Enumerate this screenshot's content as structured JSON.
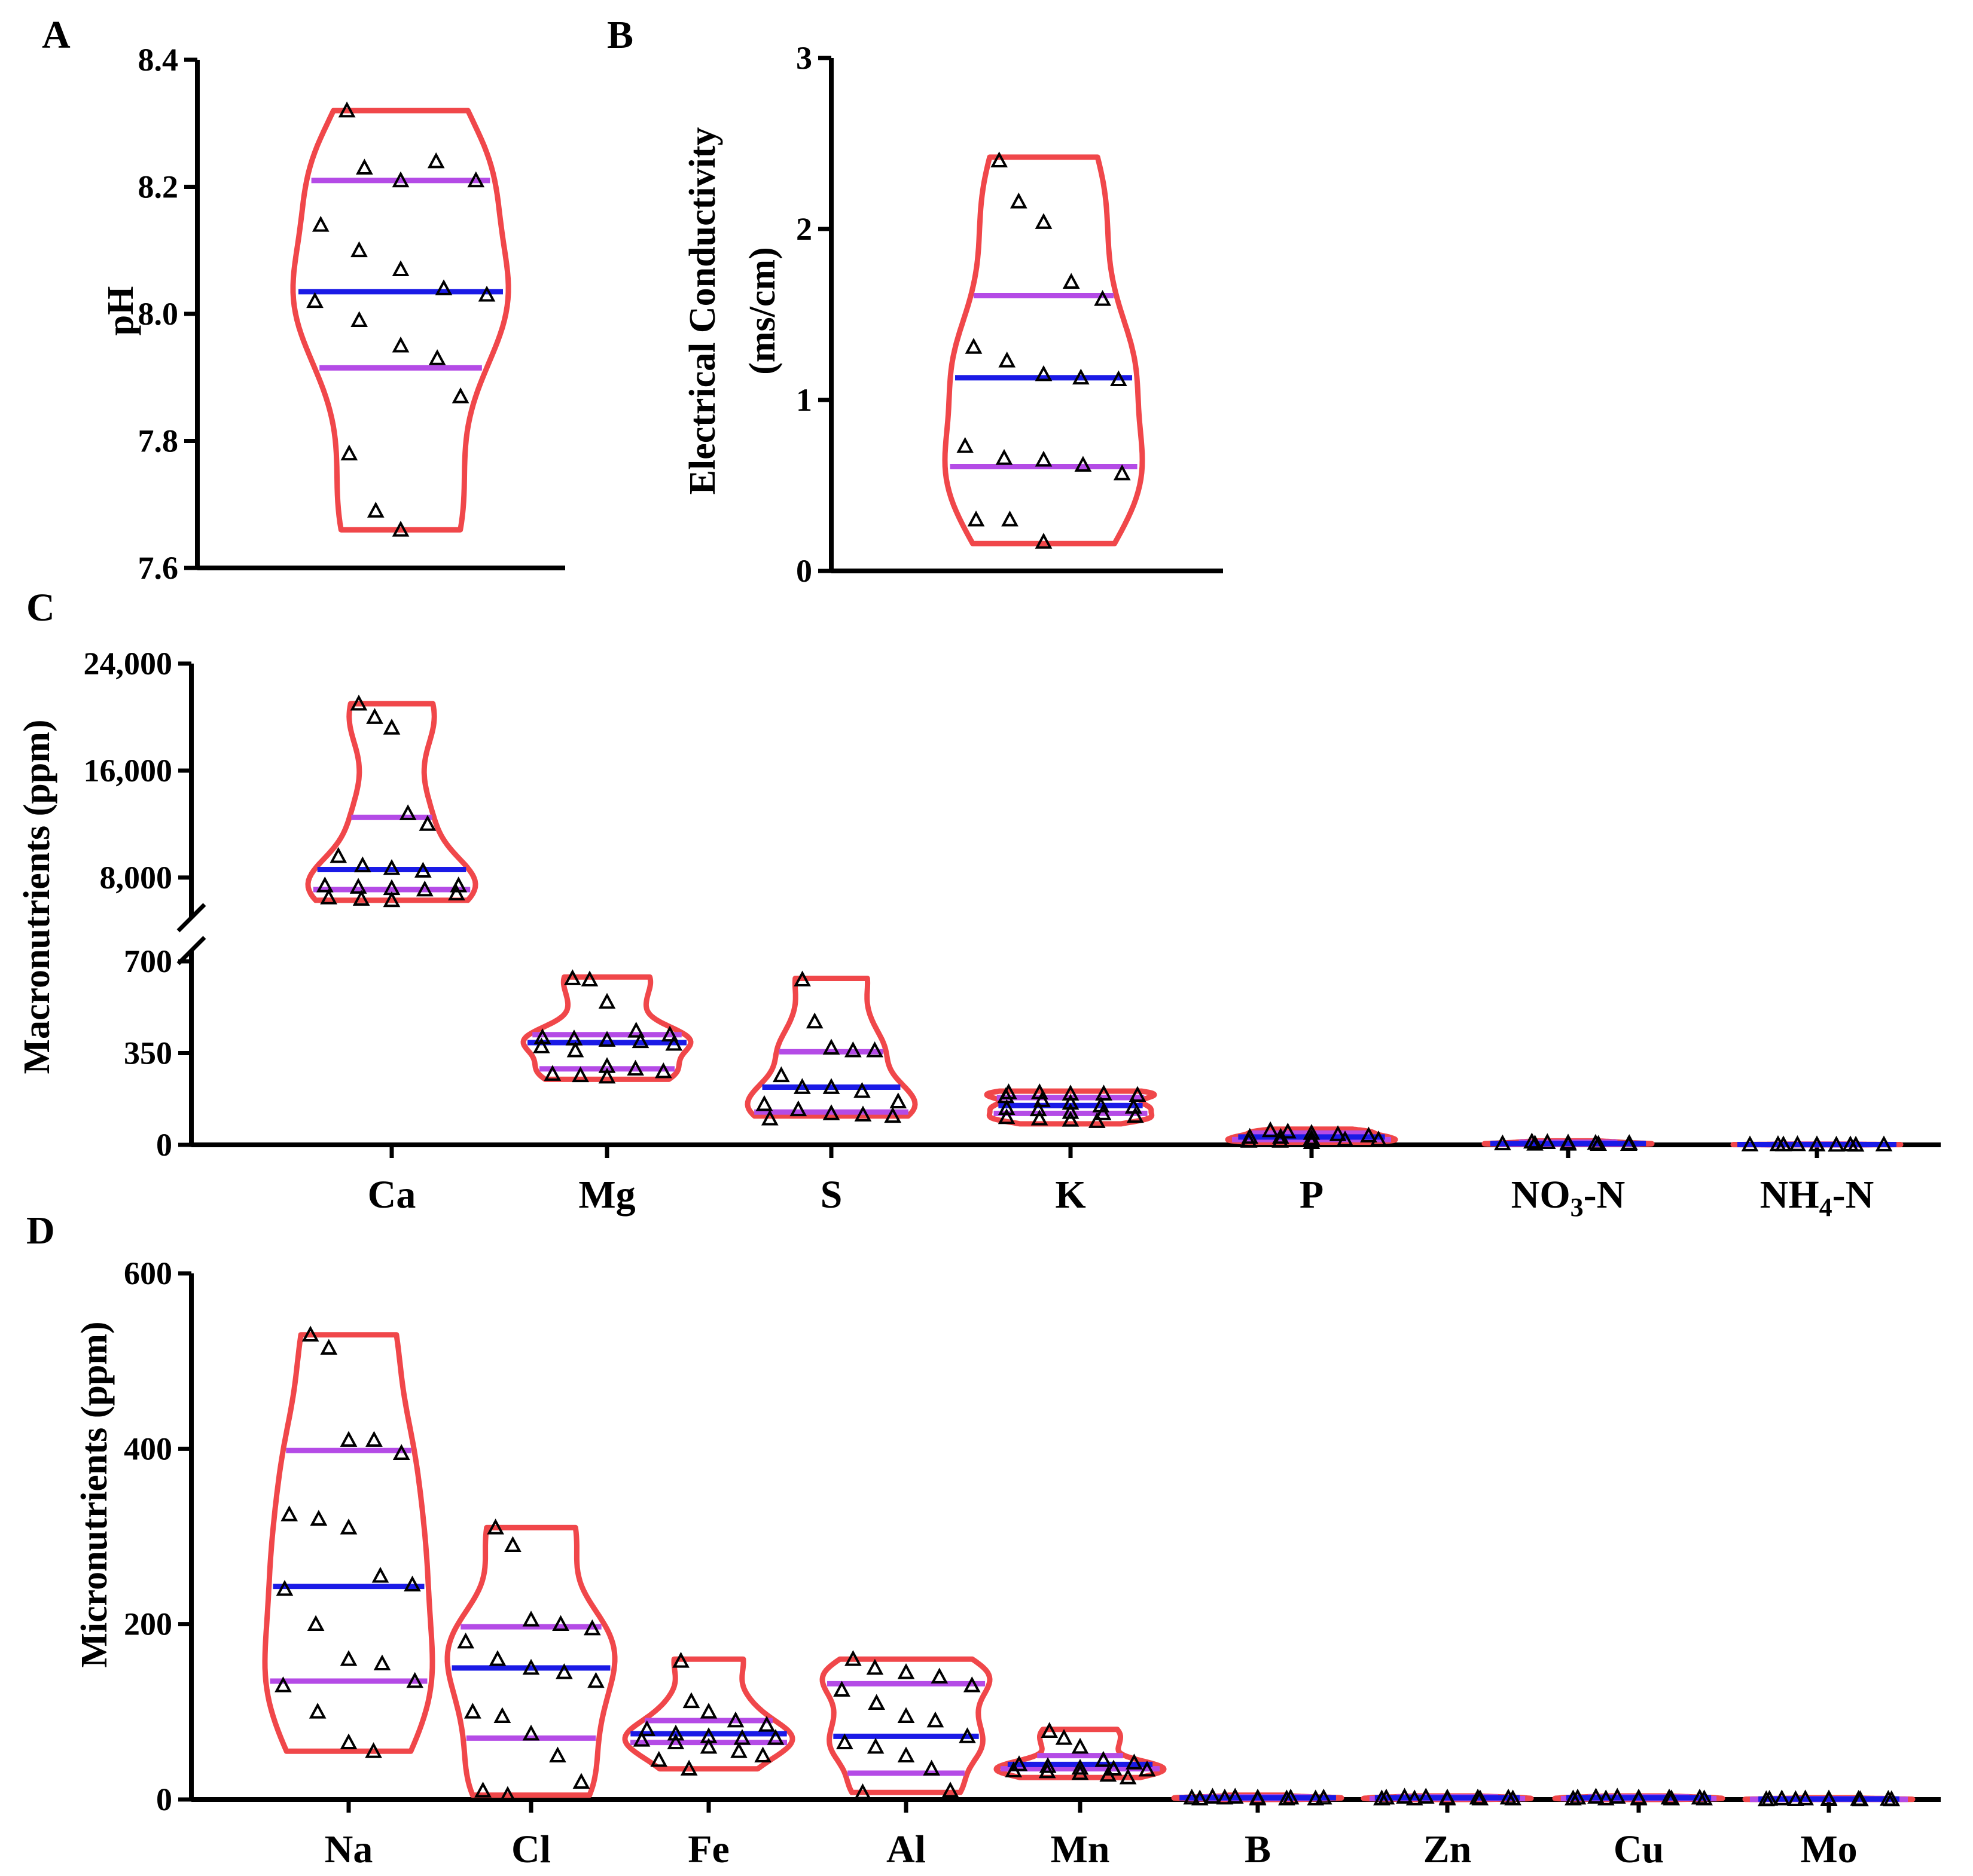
{
  "figure": {
    "colors": {
      "violin": "#f0474a",
      "median": "#1a1ae6",
      "quartile": "#b44be6",
      "marker": "#000000",
      "axis": "#000000"
    }
  },
  "chart_data": [
    {
      "panel": "A",
      "type": "violin",
      "ylabel": "pH",
      "ylim": [
        7.6,
        8.4
      ],
      "yticks": [
        7.6,
        7.8,
        8.0,
        8.2,
        8.4
      ],
      "ytick_labels": [
        "7.6",
        "7.8",
        "8.0",
        "8.2",
        "8.4"
      ],
      "groups": [
        {
          "name": "",
          "min": 7.66,
          "max": 8.32,
          "median": 8.035,
          "q1": 7.915,
          "q3": 8.21,
          "points": [
            8.32,
            8.23,
            8.21,
            8.24,
            8.21,
            8.14,
            8.1,
            8.07,
            8.04,
            8.03,
            8.02,
            7.99,
            7.95,
            7.93,
            7.87,
            7.78,
            7.69,
            7.66
          ]
        }
      ]
    },
    {
      "panel": "B",
      "type": "violin",
      "ylabel": "Electrical Conductivity",
      "ylabel2": "(ms/cm)",
      "ylim": [
        0,
        3
      ],
      "yticks": [
        0,
        1,
        2,
        3
      ],
      "ytick_labels": [
        "0",
        "1",
        "2",
        "3"
      ],
      "groups": [
        {
          "name": "",
          "min": 0.16,
          "max": 2.42,
          "median": 1.13,
          "q1": 0.61,
          "q3": 1.61,
          "points": [
            2.4,
            2.16,
            2.04,
            1.69,
            1.59,
            1.31,
            1.23,
            1.15,
            1.13,
            1.12,
            0.73,
            0.66,
            0.65,
            0.62,
            0.57,
            0.3,
            0.3,
            0.17
          ]
        }
      ]
    },
    {
      "panel": "C",
      "type": "violin",
      "ylabel": "Macronutrients (ppm)",
      "broken_axis": {
        "lower": [
          0,
          700
        ],
        "upper": [
          5000,
          24000
        ]
      },
      "yticks": [
        0,
        350,
        700,
        8000,
        16000,
        24000
      ],
      "ytick_labels": [
        "0",
        "350",
        "700",
        "8,000",
        "16,000",
        "24,000"
      ],
      "categories": [
        "Ca",
        "Mg",
        "S",
        "K",
        "P",
        "NO3-N",
        "NH4-N"
      ],
      "groups": [
        {
          "name": "Ca",
          "min": 6300,
          "max": 21000,
          "median": 8600,
          "q1": 7100,
          "q3": 12500,
          "points": [
            21000,
            20000,
            19200,
            12800,
            12000,
            9600,
            8900,
            8700,
            8500,
            7400,
            7400,
            7300,
            7200,
            7100,
            6800,
            6500,
            6400,
            6300
          ]
        },
        {
          "name": "Mg",
          "min": 250,
          "max": 640,
          "median": 390,
          "q1": 290,
          "q3": 420,
          "points": [
            635,
            630,
            545,
            435,
            420,
            410,
            405,
            400,
            395,
            385,
            375,
            360,
            300,
            290,
            280,
            270,
            265,
            260
          ]
        },
        {
          "name": "S",
          "min": 110,
          "max": 635,
          "median": 220,
          "q1": 125,
          "q3": 355,
          "points": [
            630,
            470,
            370,
            360,
            360,
            265,
            220,
            220,
            205,
            165,
            155,
            135,
            120,
            115,
            110,
            100
          ]
        },
        {
          "name": "K",
          "min": 80,
          "max": 205,
          "median": 150,
          "q1": 120,
          "q3": 180,
          "points": [
            200,
            200,
            195,
            195,
            190,
            185,
            170,
            160,
            150,
            145,
            140,
            135,
            125,
            120,
            110,
            105,
            100,
            95,
            90
          ]
        },
        {
          "name": "P",
          "min": 10,
          "max": 60,
          "median": 30,
          "q1": 20,
          "q3": 45,
          "points": [
            55,
            50,
            45,
            40,
            35,
            30,
            30,
            25,
            20,
            20,
            15,
            15,
            10
          ]
        },
        {
          "name": "NO3-N",
          "min": 2,
          "max": 15,
          "median": 5,
          "q1": 3,
          "q3": 10,
          "points": [
            12,
            10,
            8,
            7,
            6,
            5,
            4,
            4,
            3,
            3
          ]
        },
        {
          "name": "NH4-N",
          "min": 0,
          "max": 3,
          "median": 1,
          "q1": 0.5,
          "q3": 2,
          "points": [
            2,
            2,
            1,
            1,
            1,
            1,
            1,
            1,
            0,
            0
          ]
        }
      ],
      "category_labels": {
        "Ca": "Ca",
        "Mg": "Mg",
        "S": "S",
        "K": "K",
        "P": "P",
        "NO3_main": "NO",
        "NO3_sub": "3",
        "NO3_tail": "-N",
        "NH4_main": "NH",
        "NH4_sub": "4",
        "NH4_tail": "-N"
      }
    },
    {
      "panel": "D",
      "type": "violin",
      "ylabel": "Micronutrients (ppm)",
      "ylim": [
        0,
        600
      ],
      "yticks": [
        0,
        200,
        400,
        600
      ],
      "ytick_labels": [
        "0",
        "200",
        "400",
        "600"
      ],
      "categories": [
        "Na",
        "Cl",
        "Fe",
        "Al",
        "Mn",
        "B",
        "Zn",
        "Cu",
        "Mo"
      ],
      "groups": [
        {
          "name": "Na",
          "min": 55,
          "max": 530,
          "median": 243,
          "q1": 135,
          "q3": 398,
          "points": [
            530,
            515,
            410,
            410,
            395,
            325,
            320,
            310,
            255,
            245,
            240,
            200,
            160,
            155,
            135,
            130,
            100,
            65,
            55
          ]
        },
        {
          "name": "Cl",
          "min": 5,
          "max": 310,
          "median": 150,
          "q1": 70,
          "q3": 197,
          "points": [
            310,
            290,
            205,
            200,
            195,
            180,
            160,
            150,
            145,
            135,
            100,
            95,
            75,
            50,
            20,
            10,
            5
          ]
        },
        {
          "name": "Fe",
          "min": 35,
          "max": 160,
          "median": 75,
          "q1": 65,
          "q3": 90,
          "points": [
            158,
            112,
            100,
            90,
            85,
            80,
            75,
            72,
            70,
            70,
            68,
            65,
            60,
            55,
            50,
            45,
            35
          ]
        },
        {
          "name": "Al",
          "min": 8,
          "max": 160,
          "median": 72,
          "q1": 30,
          "q3": 132,
          "points": [
            160,
            150,
            145,
            140,
            130,
            125,
            110,
            95,
            90,
            72,
            65,
            60,
            50,
            35,
            10,
            8
          ]
        },
        {
          "name": "Mn",
          "min": 25,
          "max": 80,
          "median": 40,
          "q1": 35,
          "q3": 50,
          "points": [
            78,
            70,
            60,
            45,
            42,
            40,
            38,
            36,
            35,
            34,
            33,
            32,
            30,
            28,
            25
          ]
        },
        {
          "name": "B",
          "min": 0,
          "max": 5,
          "median": 2,
          "q1": 1,
          "q3": 3,
          "points": [
            3,
            3,
            2,
            2,
            2,
            2,
            2,
            1,
            1,
            1,
            1
          ]
        },
        {
          "name": "Zn",
          "min": 0,
          "max": 4,
          "median": 2,
          "q1": 1,
          "q3": 3,
          "points": [
            3,
            3,
            2,
            2,
            2,
            2,
            1,
            1,
            1,
            1,
            1
          ]
        },
        {
          "name": "Cu",
          "min": 0,
          "max": 4,
          "median": 2,
          "q1": 1,
          "q3": 3,
          "points": [
            3,
            3,
            2,
            2,
            2,
            2,
            1,
            1,
            1,
            1,
            1
          ]
        },
        {
          "name": "Mo",
          "min": 0,
          "max": 2,
          "median": 0.5,
          "q1": 0.2,
          "q3": 1,
          "points": [
            1,
            1,
            1,
            0.5,
            0.5,
            0.5,
            0.2,
            0.2,
            0.1,
            0.1,
            0.1
          ]
        }
      ]
    }
  ]
}
